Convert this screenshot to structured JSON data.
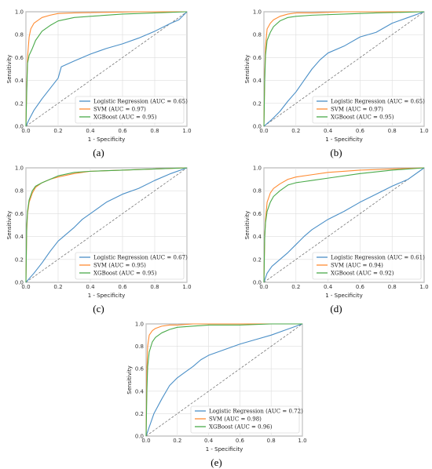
{
  "colors": {
    "logistic": "#4a8fc7",
    "svm": "#ff8c33",
    "xgboost": "#4aaa4a",
    "grid": "#dddddd",
    "diagonal": "#666666"
  },
  "chart_data": [
    {
      "type": "line",
      "caption": "(a)",
      "xlabel": "1 - Specificity",
      "ylabel": "Sensitivity",
      "xlim": [
        0,
        1
      ],
      "ylim": [
        0,
        1
      ],
      "xticks": [
        "0.0",
        "0.2",
        "0.4",
        "0.6",
        "0.8",
        "1.0"
      ],
      "yticks": [
        "0.0",
        "0.2",
        "0.4",
        "0.6",
        "0.8",
        "1.0"
      ],
      "grid": true,
      "legend_position": "lower-right",
      "reference_line": "diagonal-dashed",
      "series": [
        {
          "name": "Logistic Regression (AUC = 0.65)",
          "color_key": "logistic",
          "x": [
            0,
            0.02,
            0.05,
            0.1,
            0.15,
            0.2,
            0.22,
            0.3,
            0.4,
            0.5,
            0.6,
            0.7,
            0.8,
            0.9,
            0.95,
            1
          ],
          "y": [
            0,
            0.06,
            0.14,
            0.24,
            0.33,
            0.42,
            0.52,
            0.57,
            0.63,
            0.68,
            0.72,
            0.77,
            0.83,
            0.9,
            0.93,
            1
          ]
        },
        {
          "name": "SVM (AUC = 0.97)",
          "color_key": "svm",
          "x": [
            0,
            0.005,
            0.01,
            0.02,
            0.03,
            0.05,
            0.08,
            0.1,
            0.15,
            0.2,
            0.3,
            0.5,
            0.7,
            1
          ],
          "y": [
            0,
            0.35,
            0.6,
            0.78,
            0.85,
            0.9,
            0.93,
            0.95,
            0.97,
            0.985,
            0.99,
            0.995,
            1,
            1
          ]
        },
        {
          "name": "XGBoost (AUC = 0.95)",
          "color_key": "xgboost",
          "x": [
            0,
            0.005,
            0.01,
            0.02,
            0.04,
            0.06,
            0.1,
            0.15,
            0.2,
            0.3,
            0.4,
            0.6,
            0.8,
            1
          ],
          "y": [
            0,
            0.3,
            0.55,
            0.62,
            0.68,
            0.75,
            0.83,
            0.88,
            0.92,
            0.95,
            0.96,
            0.98,
            0.99,
            1
          ]
        }
      ]
    },
    {
      "type": "line",
      "caption": "(b)",
      "xlabel": "1 - Specificity",
      "ylabel": "Sensitivity",
      "xlim": [
        0,
        1
      ],
      "ylim": [
        0,
        1
      ],
      "xticks": [
        "0.0",
        "0.2",
        "0.4",
        "0.6",
        "0.8",
        "1.0"
      ],
      "yticks": [
        "0.0",
        "0.2",
        "0.4",
        "0.6",
        "0.8",
        "1.0"
      ],
      "grid": true,
      "legend_position": "lower-right",
      "reference_line": "diagonal-dashed",
      "series": [
        {
          "name": "Logistic Regression (AUC = 0.65)",
          "color_key": "logistic",
          "x": [
            0,
            0.05,
            0.1,
            0.15,
            0.2,
            0.25,
            0.3,
            0.35,
            0.4,
            0.5,
            0.6,
            0.7,
            0.8,
            0.9,
            1
          ],
          "y": [
            0,
            0.06,
            0.13,
            0.22,
            0.3,
            0.4,
            0.5,
            0.58,
            0.64,
            0.7,
            0.78,
            0.82,
            0.9,
            0.95,
            1
          ]
        },
        {
          "name": "SVM (AUC = 0.97)",
          "color_key": "svm",
          "x": [
            0,
            0.005,
            0.01,
            0.02,
            0.04,
            0.06,
            0.1,
            0.15,
            0.2,
            0.3,
            0.5,
            0.7,
            1
          ],
          "y": [
            0,
            0.45,
            0.7,
            0.85,
            0.9,
            0.93,
            0.96,
            0.98,
            0.99,
            0.99,
            1,
            1,
            1
          ]
        },
        {
          "name": "XGBoost (AUC = 0.95)",
          "color_key": "xgboost",
          "x": [
            0,
            0.005,
            0.01,
            0.02,
            0.04,
            0.06,
            0.1,
            0.15,
            0.2,
            0.3,
            0.5,
            0.7,
            1
          ],
          "y": [
            0,
            0.4,
            0.62,
            0.75,
            0.82,
            0.87,
            0.92,
            0.95,
            0.96,
            0.97,
            0.98,
            0.99,
            1
          ]
        }
      ]
    },
    {
      "type": "line",
      "caption": "(c)",
      "xlabel": "1 - Specificity",
      "ylabel": "Sensitivity",
      "xlim": [
        0,
        1
      ],
      "ylim": [
        0,
        1
      ],
      "xticks": [
        "0.0",
        "0.2",
        "0.4",
        "0.6",
        "0.8",
        "1.0"
      ],
      "yticks": [
        "0.0",
        "0.2",
        "0.4",
        "0.6",
        "0.8",
        "1.0"
      ],
      "grid": true,
      "legend_position": "lower-right",
      "reference_line": "diagonal-dashed",
      "series": [
        {
          "name": "Logistic Regression (AUC = 0.67)",
          "color_key": "logistic",
          "x": [
            0,
            0.05,
            0.1,
            0.15,
            0.2,
            0.25,
            0.3,
            0.35,
            0.4,
            0.5,
            0.6,
            0.7,
            0.8,
            0.9,
            1
          ],
          "y": [
            0,
            0.08,
            0.17,
            0.27,
            0.36,
            0.42,
            0.48,
            0.55,
            0.6,
            0.7,
            0.77,
            0.82,
            0.89,
            0.95,
            1
          ]
        },
        {
          "name": "SVM (AUC = 0.95)",
          "color_key": "svm",
          "x": [
            0,
            0.005,
            0.01,
            0.02,
            0.04,
            0.06,
            0.1,
            0.15,
            0.2,
            0.3,
            0.4,
            0.6,
            0.8,
            1
          ],
          "y": [
            0,
            0.45,
            0.6,
            0.7,
            0.78,
            0.83,
            0.87,
            0.9,
            0.92,
            0.95,
            0.97,
            0.98,
            0.99,
            1
          ]
        },
        {
          "name": "XGBoost (AUC = 0.95)",
          "color_key": "xgboost",
          "x": [
            0,
            0.005,
            0.01,
            0.02,
            0.04,
            0.06,
            0.1,
            0.15,
            0.2,
            0.3,
            0.4,
            0.6,
            0.8,
            1
          ],
          "y": [
            0,
            0.5,
            0.62,
            0.72,
            0.8,
            0.84,
            0.87,
            0.9,
            0.93,
            0.96,
            0.97,
            0.98,
            0.99,
            1
          ]
        }
      ]
    },
    {
      "type": "line",
      "caption": "(d)",
      "xlabel": "1 - Specificity",
      "ylabel": "Sensitivity",
      "xlim": [
        0,
        1
      ],
      "ylim": [
        0,
        1
      ],
      "xticks": [
        "0.0",
        "0.2",
        "0.4",
        "0.6",
        "0.8",
        "1.0"
      ],
      "yticks": [
        "0.0",
        "0.2",
        "0.4",
        "0.6",
        "0.8",
        "1.0"
      ],
      "grid": true,
      "legend_position": "lower-right",
      "reference_line": "diagonal-dashed",
      "series": [
        {
          "name": "Logistic Regression (AUC = 0.61)",
          "color_key": "logistic",
          "x": [
            0,
            0.02,
            0.05,
            0.1,
            0.15,
            0.2,
            0.25,
            0.3,
            0.4,
            0.5,
            0.6,
            0.7,
            0.8,
            0.9,
            1
          ],
          "y": [
            0,
            0.08,
            0.14,
            0.2,
            0.26,
            0.33,
            0.4,
            0.46,
            0.55,
            0.62,
            0.7,
            0.77,
            0.84,
            0.9,
            1
          ]
        },
        {
          "name": "SVM (AUC = 0.94)",
          "color_key": "svm",
          "x": [
            0,
            0.005,
            0.01,
            0.02,
            0.04,
            0.06,
            0.1,
            0.15,
            0.2,
            0.3,
            0.4,
            0.6,
            0.8,
            1
          ],
          "y": [
            0,
            0.4,
            0.55,
            0.7,
            0.78,
            0.82,
            0.86,
            0.9,
            0.92,
            0.94,
            0.96,
            0.98,
            0.99,
            1
          ]
        },
        {
          "name": "XGBoost (AUC = 0.92)",
          "color_key": "xgboost",
          "x": [
            0,
            0.005,
            0.01,
            0.02,
            0.04,
            0.06,
            0.1,
            0.15,
            0.2,
            0.3,
            0.4,
            0.6,
            0.8,
            1
          ],
          "y": [
            0,
            0.4,
            0.52,
            0.62,
            0.7,
            0.75,
            0.8,
            0.85,
            0.87,
            0.89,
            0.91,
            0.95,
            0.98,
            1
          ]
        }
      ]
    },
    {
      "type": "line",
      "caption": "(e)",
      "xlabel": "1 - Specificity",
      "ylabel": "Sensitivity",
      "xlim": [
        0,
        1
      ],
      "ylim": [
        0,
        1
      ],
      "xticks": [
        "0.0",
        "0.2",
        "0.4",
        "0.6",
        "0.8",
        "1.0"
      ],
      "yticks": [
        "0.0",
        "0.2",
        "0.4",
        "0.6",
        "0.8",
        "1.0"
      ],
      "grid": true,
      "legend_position": "lower-right",
      "reference_line": "diagonal-dashed",
      "series": [
        {
          "name": "Logistic Regression (AUC = 0.72)",
          "color_key": "logistic",
          "x": [
            0,
            0.02,
            0.05,
            0.1,
            0.15,
            0.2,
            0.25,
            0.3,
            0.35,
            0.4,
            0.5,
            0.6,
            0.7,
            0.8,
            0.9,
            1
          ],
          "y": [
            0,
            0.08,
            0.2,
            0.33,
            0.45,
            0.52,
            0.57,
            0.62,
            0.68,
            0.72,
            0.77,
            0.82,
            0.86,
            0.9,
            0.95,
            1
          ]
        },
        {
          "name": "SVM (AUC = 0.98)",
          "color_key": "svm",
          "x": [
            0,
            0.005,
            0.01,
            0.02,
            0.04,
            0.06,
            0.1,
            0.15,
            0.2,
            0.3,
            0.5,
            0.7,
            1
          ],
          "y": [
            0,
            0.6,
            0.8,
            0.9,
            0.94,
            0.96,
            0.98,
            0.99,
            0.99,
            1,
            1,
            1,
            1
          ]
        },
        {
          "name": "XGBoost (AUC = 0.96)",
          "color_key": "xgboost",
          "x": [
            0,
            0.005,
            0.01,
            0.02,
            0.04,
            0.06,
            0.1,
            0.15,
            0.2,
            0.3,
            0.4,
            0.6,
            0.8,
            1
          ],
          "y": [
            0,
            0.4,
            0.62,
            0.75,
            0.84,
            0.88,
            0.92,
            0.95,
            0.97,
            0.98,
            0.99,
            0.99,
            1,
            1
          ]
        }
      ]
    }
  ]
}
